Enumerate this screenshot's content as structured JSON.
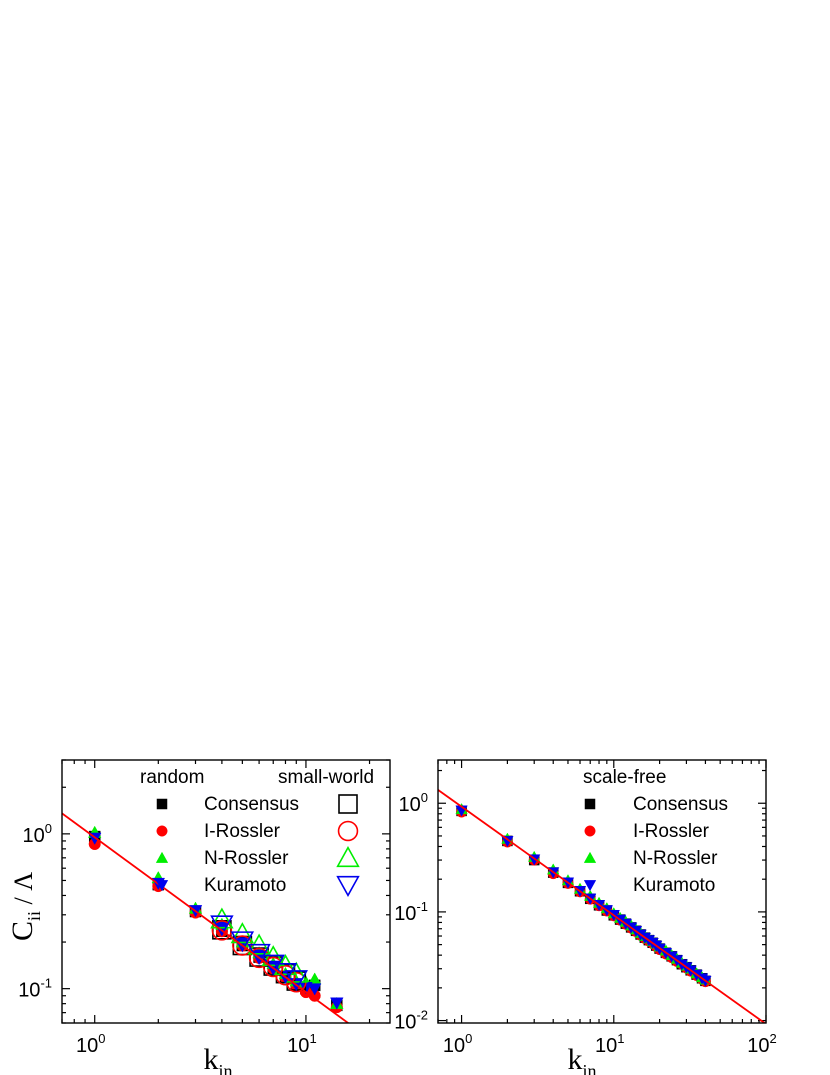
{
  "chart_data": [
    {
      "type": "scatter",
      "panel": "left",
      "xscale": "log",
      "yscale": "log",
      "xlim": [
        0.7,
        25
      ],
      "ylim": [
        0.06,
        3
      ],
      "xlabel": {
        "main": "k",
        "sub": "in"
      },
      "ylabel": {
        "main": "C",
        "sub": "ii",
        "suffix": "/ Λ"
      },
      "x_ticks": [
        {
          "value": 1,
          "base": "10",
          "exp": "0"
        },
        {
          "value": 10,
          "base": "10",
          "exp": "1"
        }
      ],
      "y_ticks": [
        {
          "value": 0.1,
          "base": "10",
          "exp": "-1"
        },
        {
          "value": 1,
          "base": "10",
          "exp": "0"
        }
      ],
      "legend_headers": {
        "filled": "random",
        "open": "small-world"
      },
      "legend": [
        "Consensus",
        "I-Rossler",
        "N-Rossler",
        "Kuramoto"
      ],
      "fit_line": {
        "color": "#ff0000",
        "slope": -1,
        "coef": 0.95
      },
      "series": [
        {
          "name": "Consensus",
          "marker": "square",
          "color": "#000000",
          "x": [
            1,
            2,
            3,
            4,
            5,
            6,
            7,
            8,
            9,
            10,
            11,
            14
          ],
          "y": [
            0.96,
            0.47,
            0.315,
            0.235,
            0.19,
            0.16,
            0.135,
            0.12,
            0.105,
            0.1,
            0.105,
            0.078
          ]
        },
        {
          "name": "I-Rossler",
          "marker": "circle",
          "color": "#ff0000",
          "x": [
            1,
            2,
            3,
            4,
            5,
            6,
            7,
            8,
            9,
            10,
            11,
            14
          ],
          "y": [
            0.86,
            0.46,
            0.31,
            0.235,
            0.19,
            0.158,
            0.135,
            0.118,
            0.105,
            0.095,
            0.09,
            0.076
          ]
        },
        {
          "name": "N-Rossler",
          "marker": "triangle-up",
          "color": "#00ee00",
          "x": [
            1,
            2,
            3,
            4,
            5,
            6,
            7,
            8,
            9,
            10,
            11,
            14
          ],
          "y": [
            1.02,
            0.52,
            0.33,
            0.26,
            0.2,
            0.17,
            0.145,
            0.125,
            0.112,
            0.11,
            0.115,
            0.08
          ]
        },
        {
          "name": "Kuramoto",
          "marker": "triangle-down",
          "color": "#0000ee",
          "x": [
            1,
            2,
            3,
            4,
            5,
            6,
            7,
            8,
            9,
            10,
            11,
            14
          ],
          "y": [
            0.94,
            0.48,
            0.32,
            0.25,
            0.2,
            0.165,
            0.14,
            0.12,
            0.108,
            0.102,
            0.1,
            0.081
          ]
        },
        {
          "name": "Consensus",
          "marker": "square-open",
          "color": "#000000",
          "x": [
            4,
            5,
            6,
            7,
            8,
            9
          ],
          "y": [
            0.24,
            0.19,
            0.16,
            0.14,
            0.125,
            0.112
          ]
        },
        {
          "name": "I-Rossler",
          "marker": "circle-open",
          "color": "#ff0000",
          "x": [
            4,
            5,
            6,
            7,
            8,
            9
          ],
          "y": [
            0.238,
            0.19,
            0.158,
            0.138,
            0.122,
            0.11
          ]
        },
        {
          "name": "N-Rossler",
          "marker": "triangle-up-open",
          "color": "#00ee00",
          "x": [
            4,
            5,
            6,
            7,
            8,
            9
          ],
          "y": [
            0.28,
            0.225,
            0.19,
            0.16,
            0.14,
            0.125
          ]
        },
        {
          "name": "Kuramoto",
          "marker": "triangle-down-open",
          "color": "#0000ee",
          "x": [
            4,
            5,
            6,
            7,
            8,
            9
          ],
          "y": [
            0.26,
            0.205,
            0.17,
            0.145,
            0.128,
            0.115
          ]
        }
      ]
    },
    {
      "type": "scatter",
      "panel": "right",
      "xscale": "log",
      "yscale": "log",
      "xlim": [
        0.7,
        100
      ],
      "ylim": [
        0.0095,
        2.5
      ],
      "xlabel": {
        "main": "k",
        "sub": "in"
      },
      "ylabel": null,
      "x_ticks": [
        {
          "value": 1,
          "base": "10",
          "exp": "0"
        },
        {
          "value": 10,
          "base": "10",
          "exp": "1"
        },
        {
          "value": 100,
          "base": "10",
          "exp": "2"
        }
      ],
      "y_ticks": [
        {
          "value": 0.01,
          "base": "10",
          "exp": "-2"
        },
        {
          "value": 0.1,
          "base": "10",
          "exp": "-1"
        },
        {
          "value": 1,
          "base": "10",
          "exp": "0"
        }
      ],
      "legend_headers": {
        "filled": "scale-free"
      },
      "legend": [
        "Consensus",
        "I-Rossler",
        "N-Rossler",
        "Kuramoto"
      ],
      "fit_line": {
        "color": "#ff0000",
        "slope": -1,
        "coef": 0.93
      },
      "series": [
        {
          "name": "Consensus",
          "marker": "square",
          "color": "#000000",
          "x": [
            1,
            2,
            3,
            4,
            5,
            6,
            7,
            8,
            9,
            10,
            11,
            12,
            13,
            14,
            15,
            16,
            17,
            18,
            19,
            20,
            22,
            24,
            26,
            28,
            30,
            32,
            35,
            38,
            40
          ],
          "y": [
            0.85,
            0.45,
            0.3,
            0.23,
            0.185,
            0.155,
            0.132,
            0.115,
            0.103,
            0.093,
            0.085,
            0.078,
            0.072,
            0.067,
            0.062,
            0.058,
            0.055,
            0.052,
            0.049,
            0.046,
            0.042,
            0.039,
            0.036,
            0.033,
            0.031,
            0.029,
            0.0265,
            0.0245,
            0.0232
          ]
        },
        {
          "name": "I-Rossler",
          "marker": "circle",
          "color": "#ff0000",
          "x": [
            1,
            2,
            3,
            4,
            5,
            6,
            7,
            8,
            9,
            10,
            11,
            12,
            13,
            14,
            15,
            16,
            17,
            18,
            19,
            20,
            22,
            24,
            26,
            28,
            30,
            32,
            35,
            38,
            40
          ],
          "y": [
            0.83,
            0.44,
            0.3,
            0.225,
            0.183,
            0.153,
            0.131,
            0.114,
            0.102,
            0.092,
            0.084,
            0.077,
            0.071,
            0.066,
            0.061,
            0.057,
            0.054,
            0.051,
            0.048,
            0.045,
            0.041,
            0.038,
            0.035,
            0.033,
            0.0305,
            0.0285,
            0.026,
            0.024,
            0.0228
          ]
        },
        {
          "name": "N-Rossler",
          "marker": "triangle-up",
          "color": "#00ee00",
          "x": [
            1,
            2,
            3,
            4,
            5,
            6,
            7,
            8,
            9,
            10,
            11,
            12,
            13,
            14,
            15,
            16,
            17,
            18,
            19,
            20,
            22,
            24,
            26,
            28,
            30,
            32,
            35,
            38,
            40
          ],
          "y": [
            0.88,
            0.47,
            0.32,
            0.245,
            0.195,
            0.163,
            0.14,
            0.121,
            0.108,
            0.097,
            0.088,
            0.081,
            0.075,
            0.069,
            0.064,
            0.06,
            0.057,
            0.054,
            0.051,
            0.048,
            0.044,
            0.04,
            0.037,
            0.034,
            0.032,
            0.03,
            0.0272,
            0.025,
            0.0238
          ]
        },
        {
          "name": "Kuramoto",
          "marker": "triangle-down",
          "color": "#0000ee",
          "x": [
            1,
            2,
            3,
            4,
            5,
            6,
            7,
            8,
            9,
            10,
            11,
            12,
            13,
            14,
            15,
            16,
            17,
            18,
            19,
            20,
            22,
            24,
            26,
            28,
            30,
            32,
            35,
            38,
            40
          ],
          "y": [
            0.86,
            0.45,
            0.305,
            0.232,
            0.187,
            0.156,
            0.133,
            0.116,
            0.104,
            0.094,
            0.085,
            0.078,
            0.072,
            0.067,
            0.062,
            0.058,
            0.055,
            0.052,
            0.049,
            0.046,
            0.042,
            0.039,
            0.036,
            0.033,
            0.031,
            0.029,
            0.0265,
            0.0245,
            0.0233
          ]
        }
      ]
    }
  ]
}
